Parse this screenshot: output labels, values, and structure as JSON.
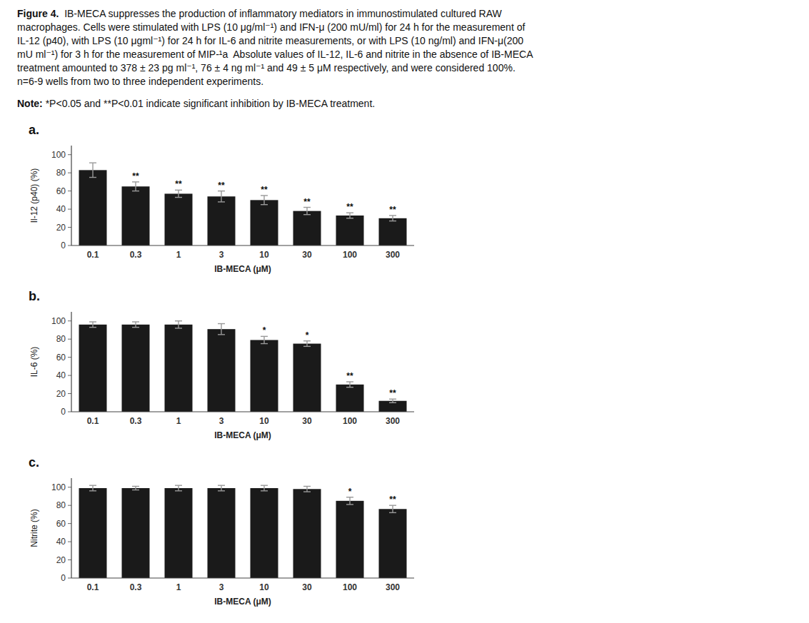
{
  "caption": {
    "bold": "Figure 4.",
    "text": "  IB-MECA suppresses the production of inflammatory mediators in immunostimulated cultured RAW\nmacrophages. Cells were stimulated with LPS (10 μg/ml⁻¹) and IFN-μ (200 mU/ml) for 24 h for the measurement of\nIL-12 (p40), with LPS (10 μgml⁻¹) for 24 h for IL-6 and nitrite measurements, or with LPS (10 ng/ml) and IFN-μ(200\nmU ml⁻¹) for 3 h for the measurement of MIP-¹a  Absolute values of IL-12, IL-6 and nitrite in the absence of IB-MECA\ntreatment amounted to 378 ± 23 pg ml⁻¹, 76 ± 4 ng ml⁻¹ and 49 ± 5 μM respectively, and were considered 100%.\nn=6-9 wells from two to three independent experiments."
  },
  "note": {
    "bold": "Note:",
    "text": " *P<0.05 and **P<0.01 indicate significant inhibition by IB-MECA treatment."
  },
  "chart_data": [
    {
      "type": "bar",
      "title": "a.",
      "color": "#1a1a1a",
      "grid": false,
      "categories": [
        "0.1",
        "0.3",
        "1",
        "3",
        "10",
        "30",
        "100",
        "300"
      ],
      "values": [
        83,
        65,
        57,
        54,
        50,
        38,
        33,
        30
      ],
      "errors": [
        8,
        5,
        4,
        6,
        5,
        4,
        3,
        3
      ],
      "annotations": [
        {
          "category": "0.3",
          "text": "**"
        },
        {
          "category": "1",
          "text": "**"
        },
        {
          "category": "3",
          "text": "**"
        },
        {
          "category": "10",
          "text": "**"
        },
        {
          "category": "30",
          "text": "**"
        },
        {
          "category": "100",
          "text": "**"
        },
        {
          "category": "300",
          "text": "**"
        }
      ],
      "xlabel": "IB-MECA (μM)",
      "ylabel": "Il-12 (p40) (%)",
      "ylim": [
        0,
        110
      ],
      "yticks": [
        0,
        20,
        40,
        60,
        80,
        100
      ]
    },
    {
      "type": "bar",
      "title": "b.",
      "color": "#1a1a1a",
      "grid": false,
      "categories": [
        "0.1",
        "0.3",
        "1",
        "3",
        "10",
        "30",
        "100",
        "300"
      ],
      "values": [
        96,
        96,
        96,
        91,
        79,
        75,
        30,
        12
      ],
      "errors": [
        3,
        3,
        4,
        6,
        4,
        3,
        3,
        2
      ],
      "annotations": [
        {
          "category": "10",
          "text": "*"
        },
        {
          "category": "30",
          "text": "*"
        },
        {
          "category": "100",
          "text": "**"
        },
        {
          "category": "300",
          "text": "**"
        }
      ],
      "xlabel": "IB-MECA (μM)",
      "ylabel": "IL-6 (%)",
      "ylim": [
        0,
        110
      ],
      "yticks": [
        0,
        20,
        40,
        60,
        80,
        100
      ]
    },
    {
      "type": "bar",
      "title": "c.",
      "color": "#1a1a1a",
      "grid": false,
      "categories": [
        "0.1",
        "0.3",
        "1",
        "3",
        "10",
        "30",
        "100",
        "300"
      ],
      "values": [
        99,
        99,
        99,
        99,
        99,
        98,
        85,
        76
      ],
      "errors": [
        3,
        2,
        3,
        3,
        3,
        3,
        4,
        4
      ],
      "annotations": [
        {
          "category": "100",
          "text": "*"
        },
        {
          "category": "300",
          "text": "**"
        }
      ],
      "xlabel": "IB-MECA (μM)",
      "ylabel": "Nitrite (%)",
      "ylim": [
        0,
        110
      ],
      "yticks": [
        0,
        20,
        40,
        60,
        80,
        100
      ]
    }
  ]
}
